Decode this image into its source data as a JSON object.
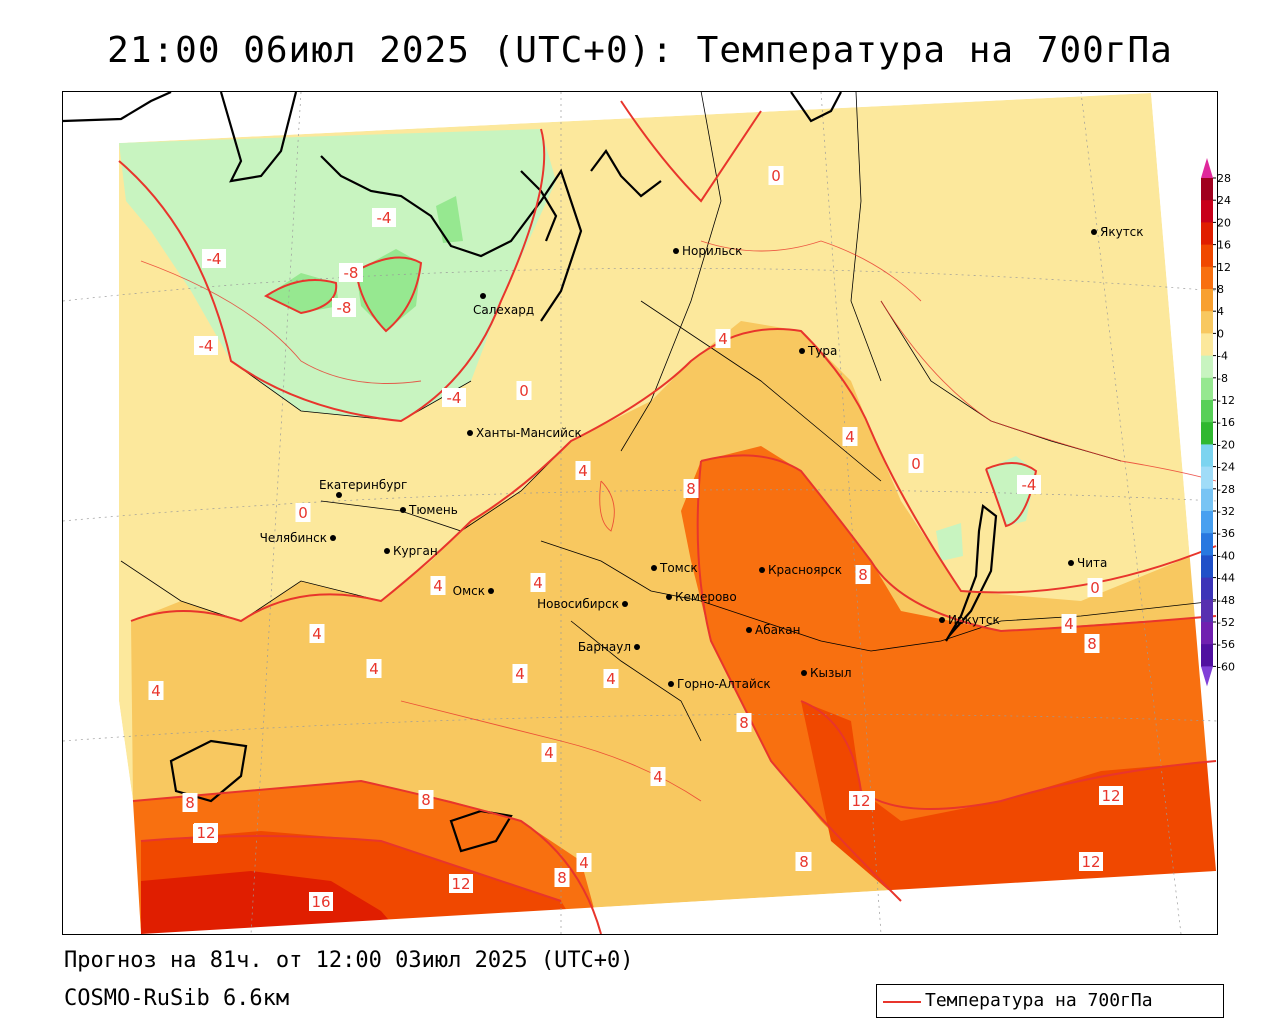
{
  "title": "21:00 06июл 2025 (UTC+0): Температура на 700гПа",
  "footer": {
    "forecast": "Прогноз на 81ч. от 12:00 03июл 2025 (UTC+0)",
    "model": "COSMO-RuSib 6.6км"
  },
  "legend": {
    "label": "Температура на 700гПа",
    "line_color": "#e8352c"
  },
  "colorbar": {
    "ticks": [
      "28",
      "24",
      "20",
      "16",
      "12",
      "8",
      "4",
      "0",
      "-4",
      "-8",
      "-12",
      "-16",
      "-20",
      "-24",
      "-28",
      "-32",
      "-36",
      "-40",
      "-44",
      "-48",
      "-52",
      "-56",
      "-60"
    ],
    "colors": [
      "#a0001e",
      "#c8001a",
      "#e01e00",
      "#f04800",
      "#f87010",
      "#f8a030",
      "#f8c860",
      "#fce89c",
      "#c8f4c0",
      "#96e890",
      "#58d058",
      "#30b830",
      "#7cd4f0",
      "#a0dcf8",
      "#78c4f4",
      "#48a0f0",
      "#2878e0",
      "#2050c8",
      "#3c34b8",
      "#5830b0",
      "#7020b0",
      "#5010a0"
    ],
    "top_arrow_color": "#e0289c",
    "bottom_arrow_color": "#8040d8"
  },
  "cities": [
    {
      "name": "Норильск"
    },
    {
      "name": "Якутск"
    },
    {
      "name": "Салехард"
    },
    {
      "name": "Тура"
    },
    {
      "name": "Ханты-Мансийск"
    },
    {
      "name": "Екатеринбург"
    },
    {
      "name": "Тюмень"
    },
    {
      "name": "Челябинск"
    },
    {
      "name": "Курган"
    },
    {
      "name": "Омск"
    },
    {
      "name": "Томск"
    },
    {
      "name": "Новосибирск"
    },
    {
      "name": "Кемерово"
    },
    {
      "name": "Красноярск"
    },
    {
      "name": "Абакан"
    },
    {
      "name": "Барнаул"
    },
    {
      "name": "Горно-Алтайск"
    },
    {
      "name": "Кызыл"
    },
    {
      "name": "Иркутск"
    },
    {
      "name": "Чита"
    }
  ],
  "isotherm_labels": [
    "0",
    "-4",
    "-4",
    "-8",
    "-8",
    "-4",
    "-4",
    "0",
    "4",
    "0",
    "4",
    "4",
    "8",
    "0",
    "-4",
    "0",
    "4",
    "4",
    "4",
    "4",
    "4",
    "4",
    "4",
    "8",
    "8",
    "0",
    "4",
    "8",
    "8",
    "12",
    "4",
    "4",
    "12",
    "8",
    "8",
    "12",
    "12",
    "16",
    "12",
    "4",
    "8",
    "12",
    "12",
    "8",
    "16"
  ]
}
